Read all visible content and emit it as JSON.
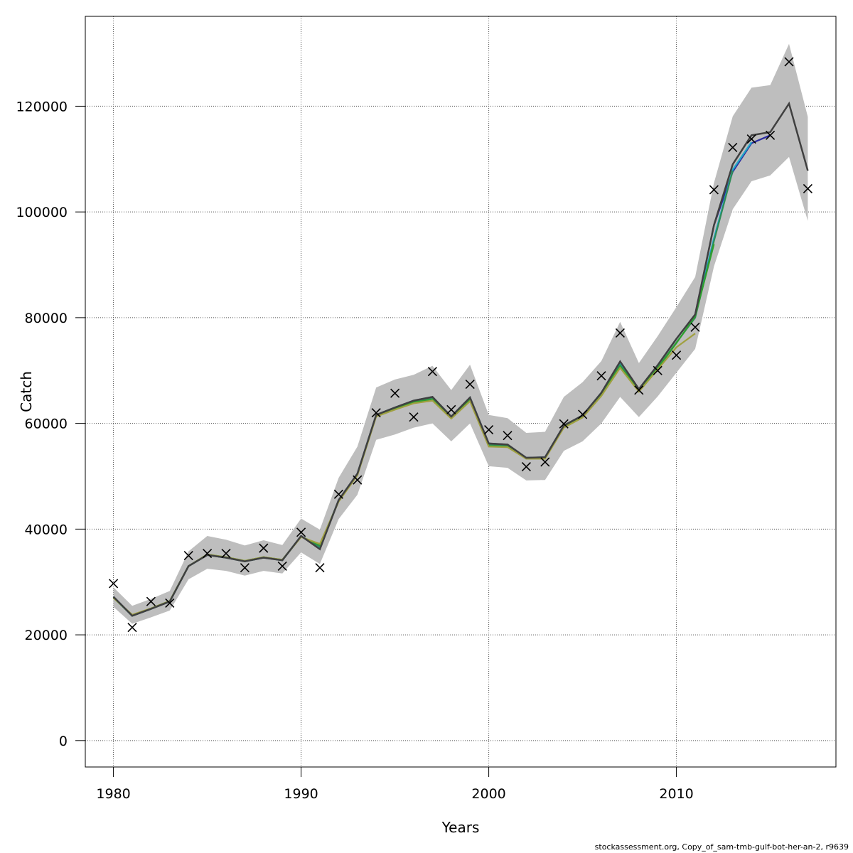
{
  "chart_data": {
    "type": "line",
    "title": "",
    "xlabel": "Years",
    "ylabel": "Catch",
    "xlim": [
      1978.5,
      2018.5
    ],
    "ylim": [
      -5000,
      137000
    ],
    "x_ticks": [
      1980,
      1990,
      2000,
      2010
    ],
    "y_ticks": [
      0,
      20000,
      40000,
      60000,
      80000,
      100000,
      120000
    ],
    "x_tick_labels": [
      "1980",
      "1990",
      "2000",
      "2010"
    ],
    "y_tick_labels": [
      "0",
      "20000",
      "40000",
      "60000",
      "80000",
      "100000",
      "120000"
    ],
    "grid": true,
    "grid_style": "dotted",
    "colors": {
      "band": "#bebebe",
      "main": "#404040",
      "marker": "#000000",
      "retro": [
        "#2a2aa0",
        "#20a8c8",
        "#2e8b57",
        "#2ea02e",
        "#a0a040"
      ]
    },
    "observed": {
      "marker": "cross",
      "x": [
        1980,
        1981,
        1982,
        1983,
        1984,
        1985,
        1986,
        1987,
        1988,
        1989,
        1990,
        1991,
        1992,
        1993,
        1994,
        1995,
        1996,
        1997,
        1998,
        1999,
        2000,
        2001,
        2002,
        2003,
        2004,
        2005,
        2006,
        2007,
        2008,
        2009,
        2010,
        2011,
        2012,
        2013,
        2014,
        2015,
        2016,
        2017
      ],
      "y": [
        29700,
        21400,
        26300,
        26000,
        35000,
        35400,
        35400,
        32700,
        36400,
        33000,
        39400,
        32700,
        46600,
        49300,
        62000,
        65700,
        61200,
        69800,
        62600,
        67400,
        58800,
        57700,
        51800,
        52700,
        59900,
        61700,
        69000,
        77100,
        66300,
        70000,
        72900,
        78200,
        104200,
        112200,
        113800,
        114500,
        128400,
        104400
      ]
    },
    "fitted": {
      "x": [
        1980,
        1981,
        1982,
        1983,
        1984,
        1985,
        1986,
        1987,
        1988,
        1989,
        1990,
        1991,
        1992,
        1993,
        1994,
        1995,
        1996,
        1997,
        1998,
        1999,
        2000,
        2001,
        2002,
        2003,
        2004,
        2005,
        2006,
        2007,
        2008,
        2009,
        2010,
        2011,
        2012,
        2013,
        2014,
        2015,
        2016,
        2017
      ],
      "y": [
        27200,
        23600,
        24900,
        26300,
        33000,
        35100,
        34600,
        33900,
        34600,
        34100,
        38700,
        36200,
        45500,
        50500,
        61600,
        63000,
        64300,
        65000,
        61300,
        64900,
        56200,
        56000,
        53500,
        53600,
        59600,
        61500,
        65800,
        71700,
        66500,
        71000,
        76000,
        80600,
        97500,
        109000,
        114500,
        115100,
        120500,
        107800
      ],
      "lower": [
        25300,
        22100,
        23300,
        24600,
        30500,
        32500,
        32100,
        31200,
        32100,
        31600,
        35600,
        33400,
        41900,
        46500,
        56900,
        57900,
        59200,
        60000,
        56600,
        60000,
        51900,
        51600,
        49200,
        49300,
        54800,
        56600,
        60000,
        65000,
        61200,
        65100,
        69600,
        74100,
        89700,
        100500,
        105800,
        106900,
        110400,
        98300
      ],
      "upper": [
        29000,
        25500,
        26800,
        28300,
        35800,
        38700,
        38000,
        36900,
        37900,
        37000,
        42000,
        39900,
        49700,
        55600,
        66800,
        68300,
        69200,
        70900,
        66300,
        71100,
        61600,
        61000,
        58200,
        58400,
        65000,
        67800,
        71800,
        79200,
        71400,
        76500,
        82000,
        87700,
        105500,
        118100,
        123500,
        124000,
        131800,
        118000
      ]
    },
    "retro_peels": [
      {
        "end_year": 2015,
        "y": [
          27200,
          23600,
          24900,
          26300,
          33000,
          35100,
          34600,
          33900,
          34600,
          34100,
          38700,
          36400,
          45500,
          50500,
          61600,
          63000,
          64300,
          65000,
          61300,
          64900,
          56200,
          56000,
          53500,
          53600,
          59600,
          61500,
          65800,
          71700,
          66500,
          71000,
          76000,
          80600,
          97500,
          107600,
          113000,
          114500
        ]
      },
      {
        "end_year": 2014,
        "y": [
          27200,
          23600,
          24900,
          26300,
          33000,
          35100,
          34600,
          33900,
          34600,
          34100,
          38700,
          36400,
          45500,
          50500,
          61600,
          63000,
          64300,
          65000,
          61300,
          64900,
          56200,
          56000,
          53500,
          53600,
          59600,
          61500,
          65800,
          71400,
          66500,
          71000,
          76000,
          80600,
          95000,
          108000,
          113200
        ]
      },
      {
        "end_year": 2013,
        "y": [
          27100,
          23600,
          24900,
          26300,
          33000,
          35100,
          34600,
          33900,
          34600,
          34100,
          38600,
          36700,
          45400,
          50400,
          61500,
          62900,
          64200,
          64800,
          61200,
          64700,
          56000,
          55800,
          53400,
          53500,
          59500,
          61400,
          65700,
          71000,
          66300,
          70500,
          75300,
          80000,
          94500,
          107800
        ]
      },
      {
        "end_year": 2012,
        "y": [
          27000,
          23700,
          25000,
          26400,
          33000,
          35200,
          34700,
          34000,
          34700,
          34200,
          38600,
          37000,
          45300,
          50300,
          61400,
          62800,
          64000,
          64500,
          61000,
          64400,
          55700,
          55600,
          53300,
          53400,
          59400,
          61300,
          65500,
          70800,
          66200,
          70400,
          75200,
          80300,
          93900
        ]
      },
      {
        "end_year": 2011,
        "y": [
          27000,
          23800,
          25000,
          26400,
          33000,
          35200,
          34700,
          34000,
          34700,
          34200,
          38500,
          37200,
          45200,
          50200,
          61300,
          62600,
          63800,
          64300,
          60900,
          64200,
          55600,
          55500,
          53300,
          53300,
          59200,
          61100,
          65200,
          70500,
          66000,
          70200,
          74400,
          77000
        ]
      }
    ]
  },
  "footer": "stockassessment.org, Copy_of_sam-tmb-gulf-bot-her-an-2, r9639"
}
